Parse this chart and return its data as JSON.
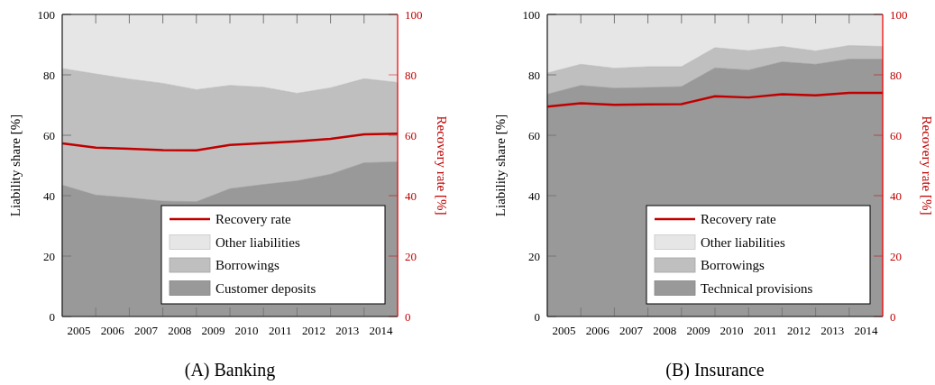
{
  "chart_data": [
    {
      "type": "area",
      "title": "(A) Banking",
      "ylabel": "Liability share [%]",
      "y2label": "Recovery rate [%]",
      "stacked": true,
      "legend": "bottom right",
      "grid": false,
      "x": [
        2004.5,
        2005.5,
        2006.5,
        2007.5,
        2008.5,
        2009.5,
        2010.5,
        2011.5,
        2012.5,
        2013.5,
        2014.5
      ],
      "xlim": [
        2004.5,
        2014.5
      ],
      "xticks": [
        2005,
        2006,
        2007,
        2008,
        2009,
        2010,
        2011,
        2012,
        2013,
        2014,
        {
          "value": 2005.5,
          "label": null
        },
        {
          "value": 2006.5,
          "label": null
        },
        {
          "value": 2007.5,
          "label": null
        },
        {
          "value": 2008.5,
          "label": null
        },
        {
          "value": 2009.5,
          "label": null
        },
        {
          "value": 2010.5,
          "label": null
        },
        {
          "value": 2011.5,
          "label": null
        },
        {
          "value": 2012.5,
          "label": null
        },
        {
          "value": 2013.5,
          "label": null
        }
      ],
      "ylim": [
        0,
        100
      ],
      "yticks": [
        0,
        20,
        40,
        60,
        80,
        100
      ],
      "y2lim": [
        0,
        100
      ],
      "y2ticks": [
        0,
        20,
        40,
        60,
        80,
        100
      ],
      "series": [
        {
          "name": "Customer deposits",
          "color": "#999999",
          "values": [
            43.5,
            40.2,
            39.3,
            38.2,
            38.0,
            42.3,
            43.7,
            44.9,
            47.1,
            50.9,
            51.2
          ]
        },
        {
          "name": "Borrowings",
          "color": "#bfbfbf",
          "values": [
            38.6,
            40.1,
            39.3,
            39.0,
            37.1,
            34.2,
            32.2,
            29.0,
            28.6,
            27.8,
            26.3
          ]
        },
        {
          "name": "Other liabilities",
          "color": "#e6e6e6",
          "values": [
            17.9,
            19.7,
            21.4,
            22.8,
            24.9,
            23.5,
            24.1,
            26.1,
            24.3,
            21.3,
            22.5
          ]
        },
        {
          "name": "Recovery rate",
          "type": "line",
          "axis": "y2",
          "color": "#c00000",
          "values": [
            57.3,
            55.9,
            55.5,
            55.1,
            55.0,
            56.8,
            57.4,
            58.0,
            58.8,
            60.3,
            60.5
          ]
        }
      ]
    },
    {
      "type": "area",
      "title": "(B) Insurance",
      "ylabel": "Liability share [%]",
      "y2label": "Recovery rate [%]",
      "stacked": true,
      "legend": "bottom right",
      "grid": false,
      "x": [
        2004.5,
        2005.5,
        2006.5,
        2007.5,
        2008.5,
        2009.5,
        2010.5,
        2011.5,
        2012.5,
        2013.5,
        2014.5
      ],
      "xlim": [
        2004.5,
        2014.5
      ],
      "xticks": [
        2005,
        2006,
        2007,
        2008,
        2009,
        2010,
        2011,
        2012,
        2013,
        2014,
        {
          "value": 2005.5,
          "label": null
        },
        {
          "value": 2006.5,
          "label": null
        },
        {
          "value": 2007.5,
          "label": null
        },
        {
          "value": 2008.5,
          "label": null
        },
        {
          "value": 2009.5,
          "label": null
        },
        {
          "value": 2010.5,
          "label": null
        },
        {
          "value": 2011.5,
          "label": null
        },
        {
          "value": 2012.5,
          "label": null
        },
        {
          "value": 2013.5,
          "label": null
        }
      ],
      "ylim": [
        0,
        100
      ],
      "yticks": [
        0,
        20,
        40,
        60,
        80,
        100
      ],
      "y2lim": [
        0,
        100
      ],
      "y2ticks": [
        0,
        20,
        40,
        60,
        80,
        100
      ],
      "series": [
        {
          "name": "Technical provisions",
          "color": "#999999",
          "values": [
            73.6,
            76.5,
            75.6,
            75.8,
            76.1,
            82.3,
            81.6,
            84.3,
            83.5,
            85.2,
            85.2
          ]
        },
        {
          "name": "Borrowings",
          "color": "#bfbfbf",
          "values": [
            7.0,
            7.0,
            6.6,
            6.9,
            6.6,
            6.7,
            6.4,
            5.1,
            4.4,
            4.5,
            4.2
          ]
        },
        {
          "name": "Other liabilities",
          "color": "#e6e6e6",
          "values": [
            19.4,
            16.5,
            17.8,
            17.3,
            17.3,
            11.0,
            12.0,
            10.6,
            12.1,
            10.3,
            10.6
          ]
        },
        {
          "name": "Recovery rate",
          "type": "line",
          "axis": "y2",
          "color": "#c00000",
          "values": [
            69.5,
            70.6,
            70.1,
            70.2,
            70.3,
            72.9,
            72.5,
            73.6,
            73.2,
            74.0,
            74.0
          ]
        }
      ]
    }
  ]
}
